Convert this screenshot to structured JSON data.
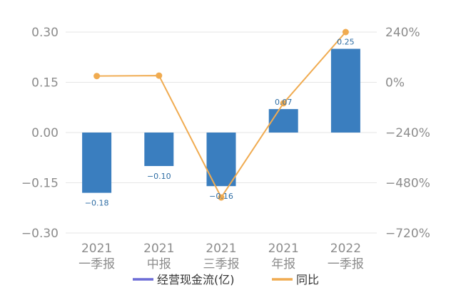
{
  "chart_data": {
    "type": "bar",
    "categories": [
      [
        "2021",
        "一季报"
      ],
      [
        "2021",
        "中报"
      ],
      [
        "2021",
        "三季报"
      ],
      [
        "2021",
        "年报"
      ],
      [
        "2022",
        "一季报"
      ]
    ],
    "series": [
      {
        "name": "经营现金流(亿)",
        "type": "bar",
        "axis": "left",
        "values": [
          -0.18,
          -0.1,
          -0.16,
          0.07,
          0.25
        ],
        "labels": [
          "-0.18",
          "-0.10",
          "-0.16",
          "0.07",
          "0.25"
        ],
        "color": "#3a7ebf"
      },
      {
        "name": "同比",
        "type": "line",
        "axis": "right",
        "values": [
          30,
          32,
          -550,
          -100,
          240
        ],
        "unit": "%",
        "color": "#f0ab50"
      }
    ],
    "y_left": {
      "ylim": [
        -0.3,
        0.3
      ],
      "ticks": [
        0.3,
        0.15,
        0.0,
        -0.15,
        -0.3
      ],
      "tick_labels": [
        "0.30",
        "0.15",
        "0.00",
        "-0.15",
        "-0.30"
      ]
    },
    "y_right": {
      "ylim": [
        -720,
        240
      ],
      "ticks": [
        240,
        0,
        -240,
        -480,
        -720
      ],
      "tick_labels": [
        "240%",
        "0%",
        "-240%",
        "-480%",
        "-720%"
      ]
    },
    "grid": true,
    "legend_position": "bottom-center",
    "legend_colors": [
      "#6b6bd6",
      "#f0ab50"
    ]
  }
}
